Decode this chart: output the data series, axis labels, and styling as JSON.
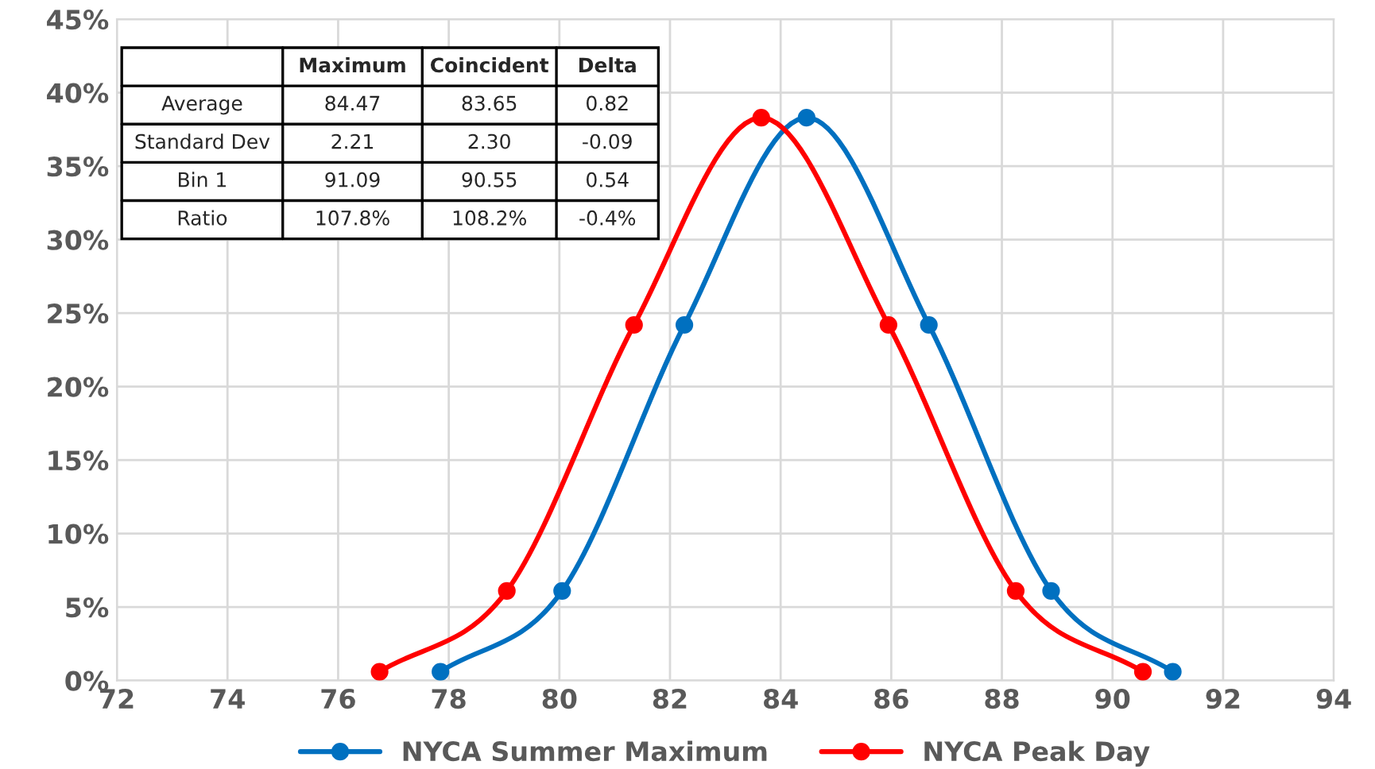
{
  "chart_data": {
    "type": "line",
    "series": [
      {
        "name": "NYCA Summer Maximum",
        "color": "#0070c0",
        "x": [
          77.85,
          80.05,
          82.26,
          84.47,
          86.68,
          88.89,
          91.09
        ],
        "values": [
          0.6,
          6.1,
          24.2,
          38.3,
          24.2,
          6.1,
          0.6
        ]
      },
      {
        "name": "NYCA Peak Day",
        "color": "#ff0000",
        "x": [
          76.75,
          79.05,
          81.35,
          83.65,
          85.95,
          88.25,
          90.55
        ],
        "values": [
          0.6,
          6.1,
          24.2,
          38.3,
          24.2,
          6.1,
          0.6
        ]
      }
    ],
    "xlim": [
      72,
      94
    ],
    "xticks": [
      72,
      74,
      76,
      78,
      80,
      82,
      84,
      86,
      88,
      90,
      92,
      94
    ],
    "ylim": [
      0,
      45
    ],
    "yticks": [
      {
        "value": 0,
        "label": "0%"
      },
      {
        "value": 5,
        "label": "5%"
      },
      {
        "value": 10,
        "label": "10%"
      },
      {
        "value": 15,
        "label": "15%"
      },
      {
        "value": 20,
        "label": "20%"
      },
      {
        "value": 25,
        "label": "25%"
      },
      {
        "value": 30,
        "label": "30%"
      },
      {
        "value": 35,
        "label": "35%"
      },
      {
        "value": 40,
        "label": "40%"
      },
      {
        "value": 45,
        "label": "45%"
      }
    ],
    "grid": true,
    "legend": "bottom",
    "marker": "circle",
    "line_style": "solid",
    "annotations": [
      "Maximum",
      "Coincident",
      "Delta",
      "Average",
      "84.47",
      "83.65",
      "0.82",
      "Standard Dev",
      "2.21",
      "2.30",
      "-0.09",
      "Bin 1",
      "91.09",
      "90.55",
      "0.54",
      "Ratio",
      "107.8%",
      "108.2%",
      "-0.4%"
    ]
  }
}
